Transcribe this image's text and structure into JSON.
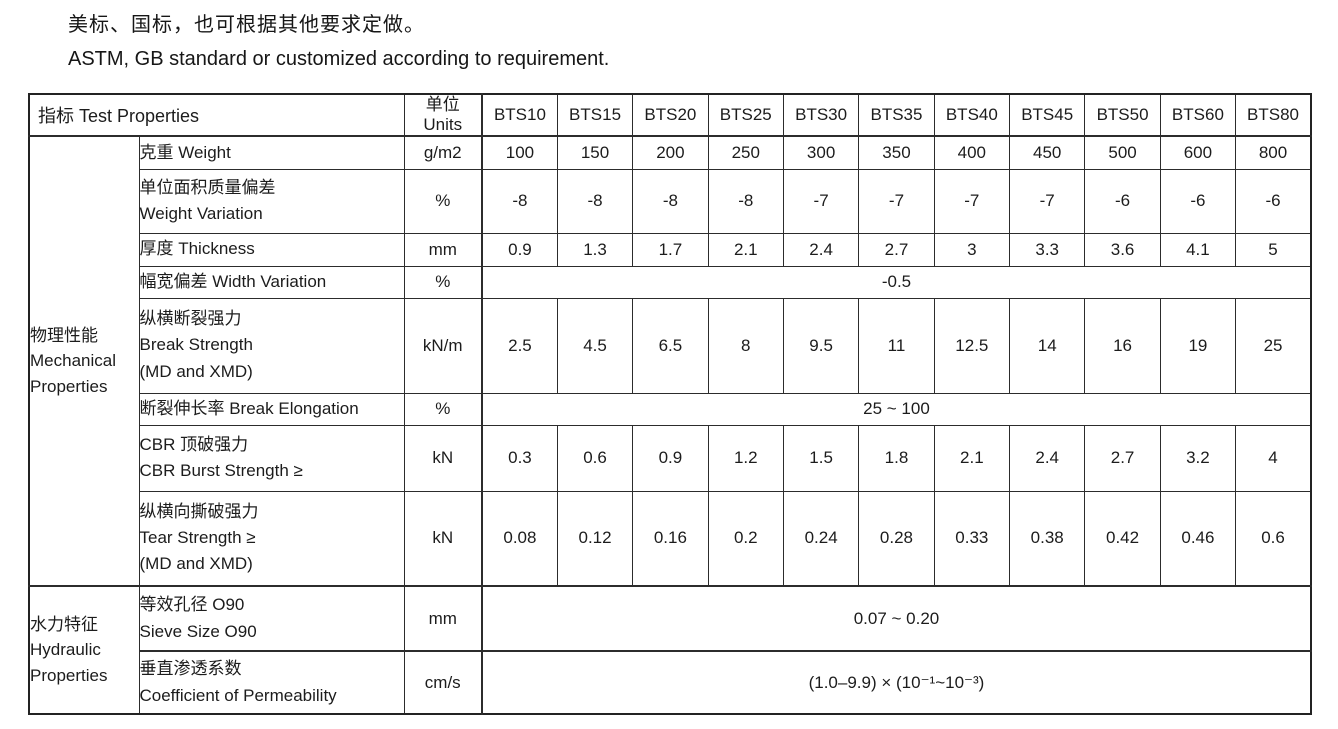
{
  "intro": {
    "line_zh": "美标、国标，也可根据其他要求定做。",
    "line_en": "ASTM, GB standard or customized according to requirement."
  },
  "table": {
    "header": {
      "test_properties": "指标  Test Properties",
      "units_zh": "单位",
      "units_en": "Units",
      "models": [
        "BTS10",
        "BTS15",
        "BTS20",
        "BTS25",
        "BTS30",
        "BTS35",
        "BTS40",
        "BTS45",
        "BTS50",
        "BTS60",
        "BTS80"
      ]
    },
    "groups": [
      {
        "lines": [
          "物理性能",
          "Mechanical",
          "Properties"
        ]
      },
      {
        "lines": [
          "水力特征",
          "Hydraulic",
          "Properties"
        ]
      }
    ],
    "rows": [
      {
        "name_lines": [
          "克重 Weight"
        ],
        "unit": "g/m2",
        "values": [
          "100",
          "150",
          "200",
          "250",
          "300",
          "350",
          "400",
          "450",
          "500",
          "600",
          "800"
        ]
      },
      {
        "name_lines": [
          "单位面积质量偏差",
          "Weight Variation"
        ],
        "unit": "%",
        "values": [
          "-8",
          "-8",
          "-8",
          "-8",
          "-7",
          "-7",
          "-7",
          "-7",
          "-6",
          "-6",
          "-6"
        ]
      },
      {
        "name_lines": [
          "厚度 Thickness"
        ],
        "unit": "mm",
        "values": [
          "0.9",
          "1.3",
          "1.7",
          "2.1",
          "2.4",
          "2.7",
          "3",
          "3.3",
          "3.6",
          "4.1",
          "5"
        ]
      },
      {
        "name_lines": [
          "幅宽偏差 Width Variation"
        ],
        "unit": "%",
        "span_value": "-0.5"
      },
      {
        "name_lines": [
          "纵横断裂强力",
          "Break Strength",
          "(MD and XMD)"
        ],
        "unit": "kN/m",
        "values": [
          "2.5",
          "4.5",
          "6.5",
          "8",
          "9.5",
          "11",
          "12.5",
          "14",
          "16",
          "19",
          "25"
        ]
      },
      {
        "name_lines": [
          "断裂伸长率 Break Elongation"
        ],
        "unit": "%",
        "span_value": "25 ~ 100"
      },
      {
        "name_lines": [
          "CBR 顶破强力",
          "CBR Burst Strength ≥"
        ],
        "unit": "kN",
        "values": [
          "0.3",
          "0.6",
          "0.9",
          "1.2",
          "1.5",
          "1.8",
          "2.1",
          "2.4",
          "2.7",
          "3.2",
          "4"
        ]
      },
      {
        "name_lines": [
          "纵横向撕破强力",
          "Tear Strength ≥",
          "(MD and XMD)"
        ],
        "unit": "kN",
        "values": [
          "0.08",
          "0.12",
          "0.16",
          "0.2",
          "0.24",
          "0.28",
          "0.33",
          "0.38",
          "0.42",
          "0.46",
          "0.6"
        ]
      },
      {
        "name_lines": [
          "等效孔径 O90",
          "Sieve Size O90"
        ],
        "unit": "mm",
        "span_value": "0.07 ~ 0.20"
      },
      {
        "name_lines": [
          "垂直渗透系数",
          "Coefficient of Permeability"
        ],
        "unit": "cm/s",
        "span_value": "(1.0–9.9) × (10⁻¹~10⁻³)"
      }
    ]
  }
}
